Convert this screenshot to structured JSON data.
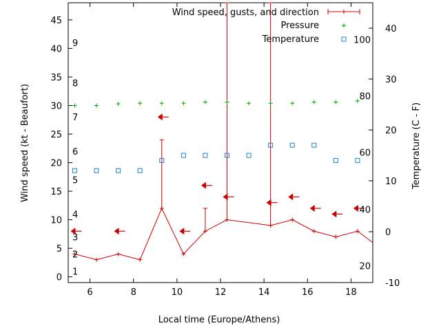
{
  "chart_data": {
    "type": "line",
    "xlabel": "Local time (Europe/Athens)",
    "ylabel_left": "Wind speed (kt - Beaufort)",
    "ylabel_right": "Temperature (C - F)",
    "x_range": [
      5,
      19
    ],
    "y_left_range": [
      -1,
      48
    ],
    "y_right_range": [
      -10,
      45
    ],
    "x_ticks": [
      6,
      8,
      10,
      12,
      14,
      16,
      18
    ],
    "y_left_ticks": [
      0,
      5,
      10,
      15,
      20,
      25,
      30,
      35,
      40,
      45
    ],
    "y_right_ticks": [
      -10,
      0,
      10,
      20,
      30,
      40
    ],
    "beaufort_labels": [
      {
        "label": "1",
        "kt": 1
      },
      {
        "label": "2",
        "kt": 4
      },
      {
        "label": "3",
        "kt": 7
      },
      {
        "label": "4",
        "kt": 11
      },
      {
        "label": "5",
        "kt": 17
      },
      {
        "label": "6",
        "kt": 22
      },
      {
        "label": "7",
        "kt": 28
      },
      {
        "label": "8",
        "kt": 34
      },
      {
        "label": "9",
        "kt": 41
      }
    ],
    "fahrenheit_labels": [
      {
        "label": "20",
        "c": -6.7
      },
      {
        "label": "40",
        "c": 4.4
      },
      {
        "label": "60",
        "c": 15.6
      },
      {
        "label": "80",
        "c": 26.7
      },
      {
        "label": "100",
        "c": 37.8
      }
    ],
    "legend": {
      "wind": "Wind speed, gusts, and direction",
      "pressure": "Pressure",
      "temperature": "Temperature"
    },
    "colors": {
      "wind": "#cc0000",
      "pressure": "#00aa00",
      "temperature": "#1a7fd4"
    },
    "series": [
      {
        "name": "Wind speed, gusts, and direction",
        "x": [
          5.3,
          6.3,
          7.3,
          8.3,
          9.3,
          10.3,
          11.3,
          12.3,
          14.3,
          15.3,
          16.3,
          17.3,
          18.3,
          19.0
        ],
        "values": [
          4,
          3,
          4,
          3,
          12,
          4,
          8,
          10,
          9,
          10,
          8,
          7,
          8,
          6
        ]
      },
      {
        "name": "Gusts",
        "x": [
          9.3,
          11.3,
          12.3,
          14.3
        ],
        "values": [
          24,
          12,
          48,
          48
        ]
      },
      {
        "name": "Pressure",
        "x": [
          5.3,
          6.3,
          7.3,
          8.3,
          9.3,
          10.3,
          11.3,
          12.3,
          13.3,
          14.3,
          15.3,
          16.3,
          17.3,
          18.3
        ],
        "values": [
          30,
          30,
          30.3,
          30.4,
          30.4,
          30.4,
          30.6,
          30.6,
          30.4,
          30.4,
          30.4,
          30.6,
          30.6,
          30.8
        ]
      },
      {
        "name": "Temperature",
        "x": [
          5.3,
          6.3,
          7.3,
          8.3,
          9.3,
          10.3,
          11.3,
          12.3,
          13.3,
          14.3,
          15.3,
          16.3,
          17.3,
          18.3
        ],
        "values": [
          12,
          12,
          12,
          12,
          14,
          15,
          15,
          15,
          15,
          17,
          17,
          17,
          14,
          14
        ]
      }
    ],
    "wind_direction_arrows": [
      {
        "x": 5.3,
        "kt": 8,
        "dir": "left"
      },
      {
        "x": 7.3,
        "kt": 8,
        "dir": "left"
      },
      {
        "x": 9.3,
        "kt": 28,
        "dir": "left"
      },
      {
        "x": 10.3,
        "kt": 8,
        "dir": "left"
      },
      {
        "x": 11.3,
        "kt": 16,
        "dir": "left"
      },
      {
        "x": 12.3,
        "kt": 14,
        "dir": "left"
      },
      {
        "x": 14.3,
        "kt": 13,
        "dir": "left"
      },
      {
        "x": 15.3,
        "kt": 14,
        "dir": "left"
      },
      {
        "x": 16.3,
        "kt": 12,
        "dir": "left"
      },
      {
        "x": 17.3,
        "kt": 11,
        "dir": "left"
      },
      {
        "x": 18.3,
        "kt": 12,
        "dir": "left"
      }
    ]
  }
}
